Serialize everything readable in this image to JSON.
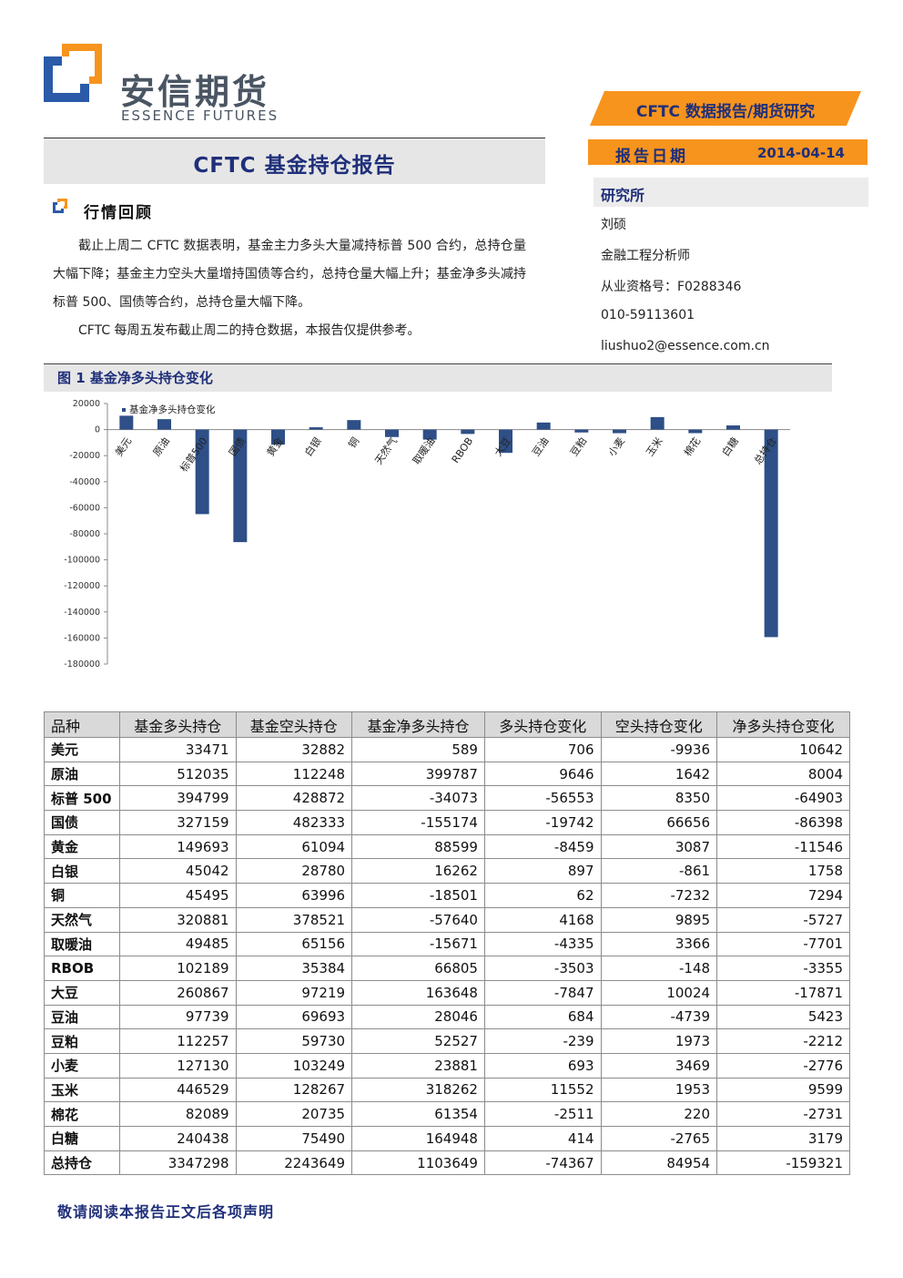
{
  "logo": {
    "name_cn": "安信期货",
    "name_en": "ESSENCE FUTURES"
  },
  "header": {
    "banner": "CFTC 数据报告/期货研究",
    "date_label": "报告日期",
    "date_value": "2014-04-14",
    "institute": "研究所",
    "analyst": "刘硕",
    "role": "金融工程分析师",
    "license": "从业资格号：F0288346",
    "phone": "010-59113601",
    "email": "liushuo2@essence.com.cn"
  },
  "title": "CFTC 基金持仓报告",
  "section": {
    "title": "行情回顾",
    "para1": "截止上周二 CFTC 数据表明，基金主力多头大量减持标普 500 合约，总持仓量大幅下降；基金主力空头大量增持国债等合约，总持仓量大幅上升；基金净多头减持标普 500、国债等合约，总持仓量大幅下降。",
    "para2": "CFTC 每周五发布截止周二的持仓数据，本报告仅提供参考。"
  },
  "figure_title": "图 1  基金净多头持仓变化",
  "chart_data": {
    "type": "bar",
    "categories": [
      "美元",
      "原油",
      "标普500",
      "国债",
      "黄金",
      "白银",
      "铜",
      "天然气",
      "取暖油",
      "RBOB",
      "大豆",
      "豆油",
      "豆粕",
      "小麦",
      "玉米",
      "棉花",
      "白糖",
      "总持仓"
    ],
    "series": [
      {
        "name": "基金净多头持仓变化",
        "values": [
          10642,
          8004,
          -64903,
          -86398,
          -11546,
          1758,
          7294,
          -5727,
          -7701,
          -3355,
          -17871,
          5423,
          -2212,
          -2776,
          9599,
          -2731,
          3179,
          -159321
        ]
      }
    ],
    "ylim": [
      -180000,
      20000
    ],
    "yticks": [
      20000,
      0,
      -20000,
      -40000,
      -60000,
      -80000,
      -100000,
      -120000,
      -140000,
      -160000,
      -180000
    ],
    "legend_position": "top-left",
    "bar_color": "#2e4f87",
    "grid": false
  },
  "table": {
    "headers": [
      "品种",
      "基金多头持仓",
      "基金空头持仓",
      "基金净多头持仓",
      "多头持仓变化",
      "空头持仓变化",
      "净多头持仓变化"
    ],
    "rows": [
      [
        "美元",
        "33471",
        "32882",
        "589",
        "706",
        "-9936",
        "10642"
      ],
      [
        "原油",
        "512035",
        "112248",
        "399787",
        "9646",
        "1642",
        "8004"
      ],
      [
        "标普 500",
        "394799",
        "428872",
        "-34073",
        "-56553",
        "8350",
        "-64903"
      ],
      [
        "国债",
        "327159",
        "482333",
        "-155174",
        "-19742",
        "66656",
        "-86398"
      ],
      [
        "黄金",
        "149693",
        "61094",
        "88599",
        "-8459",
        "3087",
        "-11546"
      ],
      [
        "白银",
        "45042",
        "28780",
        "16262",
        "897",
        "-861",
        "1758"
      ],
      [
        "铜",
        "45495",
        "63996",
        "-18501",
        "62",
        "-7232",
        "7294"
      ],
      [
        "天然气",
        "320881",
        "378521",
        "-57640",
        "4168",
        "9895",
        "-5727"
      ],
      [
        "取暖油",
        "49485",
        "65156",
        "-15671",
        "-4335",
        "3366",
        "-7701"
      ],
      [
        "RBOB",
        "102189",
        "35384",
        "66805",
        "-3503",
        "-148",
        "-3355"
      ],
      [
        "大豆",
        "260867",
        "97219",
        "163648",
        "-7847",
        "10024",
        "-17871"
      ],
      [
        "豆油",
        "97739",
        "69693",
        "28046",
        "684",
        "-4739",
        "5423"
      ],
      [
        "豆粕",
        "112257",
        "59730",
        "52527",
        "-239",
        "1973",
        "-2212"
      ],
      [
        "小麦",
        "127130",
        "103249",
        "23881",
        "693",
        "3469",
        "-2776"
      ],
      [
        "玉米",
        "446529",
        "128267",
        "318262",
        "11552",
        "1953",
        "9599"
      ],
      [
        "棉花",
        "82089",
        "20735",
        "61354",
        "-2511",
        "220",
        "-2731"
      ],
      [
        "白糖",
        "240438",
        "75490",
        "164948",
        "414",
        "-2765",
        "3179"
      ],
      [
        "总持仓",
        "3347298",
        "2243649",
        "1103649",
        "-74367",
        "84954",
        "-159321"
      ]
    ]
  },
  "footer": "敬请阅读本报告正文后各项声明",
  "colors": {
    "brand_blue": "#1f2f7a",
    "orange": "#f7941d",
    "logo_blue": "#2a5aa8",
    "bar": "#2e4f87"
  }
}
